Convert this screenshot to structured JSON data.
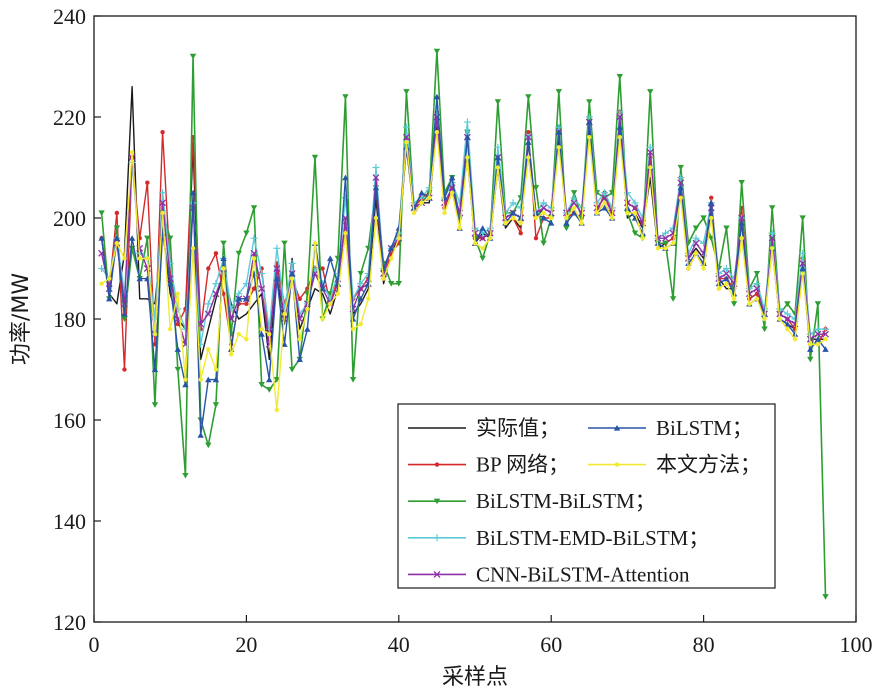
{
  "chart_data": {
    "type": "line",
    "title": "",
    "xlabel": "采样点",
    "ylabel": "功率/MW",
    "xlim": [
      0,
      100
    ],
    "ylim": [
      120,
      240
    ],
    "xticks": [
      0,
      20,
      40,
      60,
      80,
      100
    ],
    "yticks": [
      120,
      140,
      160,
      180,
      200,
      220,
      240
    ],
    "grid": false,
    "legend_position": "bottom-right",
    "x": [
      1,
      2,
      3,
      4,
      5,
      6,
      7,
      8,
      9,
      10,
      11,
      12,
      13,
      14,
      15,
      16,
      17,
      18,
      19,
      20,
      21,
      22,
      23,
      24,
      25,
      26,
      27,
      28,
      29,
      30,
      31,
      32,
      33,
      34,
      35,
      36,
      37,
      38,
      39,
      40,
      41,
      42,
      43,
      44,
      45,
      46,
      47,
      48,
      49,
      50,
      51,
      52,
      53,
      54,
      55,
      56,
      57,
      58,
      59,
      60,
      61,
      62,
      63,
      64,
      65,
      66,
      67,
      68,
      69,
      70,
      71,
      72,
      73,
      74,
      75,
      76,
      77,
      78,
      79,
      80,
      81,
      82,
      83,
      84,
      85,
      86,
      87,
      88,
      89,
      90,
      91,
      92,
      93,
      94,
      95,
      96
    ],
    "series": [
      {
        "name": "实际值；",
        "color": "#1a1a1a",
        "marker": "none",
        "values": [
          196,
          185,
          183,
          193,
          226,
          184,
          184,
          183,
          198,
          185,
          180,
          178,
          214,
          172,
          178,
          184,
          189,
          183,
          180,
          181,
          183,
          185,
          172,
          188,
          179,
          192,
          178,
          182,
          186,
          185,
          181,
          186,
          197,
          181,
          183,
          186,
          204,
          187,
          193,
          196,
          214,
          201,
          203,
          203,
          218,
          202,
          206,
          200,
          212,
          195,
          197,
          196,
          210,
          198,
          200,
          198,
          215,
          200,
          202,
          201,
          216,
          200,
          201,
          200,
          218,
          201,
          203,
          200,
          219,
          200,
          201,
          198,
          208,
          194,
          195,
          196,
          205,
          192,
          194,
          192,
          201,
          188,
          186,
          186,
          200,
          184,
          185,
          180,
          195,
          180,
          179,
          178,
          192,
          176,
          176,
          176
        ]
      },
      {
        "name": "BP 网络；",
        "color": "#d42a2a",
        "marker": "dot",
        "values": [
          196,
          186,
          201,
          170,
          212,
          196,
          207,
          175,
          217,
          190,
          179,
          182,
          216,
          178,
          190,
          193,
          185,
          175,
          183,
          183,
          186,
          190,
          176,
          191,
          183,
          188,
          184,
          186,
          190,
          190,
          183,
          188,
          199,
          184,
          186,
          188,
          206,
          188,
          193,
          195,
          215,
          202,
          204,
          205,
          221,
          202,
          206,
          200,
          217,
          196,
          196,
          197,
          211,
          199,
          200,
          197,
          217,
          196,
          200,
          200,
          218,
          200,
          201,
          200,
          220,
          201,
          205,
          201,
          221,
          203,
          202,
          199,
          212,
          195,
          195,
          196,
          208,
          190,
          193,
          191,
          204,
          188,
          188,
          186,
          202,
          184,
          185,
          181,
          196,
          181,
          180,
          178,
          192,
          175,
          175,
          178
        ]
      },
      {
        "name": "BiLSTM-BiLSTM；",
        "color": "#2e9e32",
        "marker": "tri-down",
        "values": [
          201,
          184,
          198,
          180,
          194,
          188,
          196,
          163,
          201,
          196,
          170,
          149,
          232,
          160,
          155,
          163,
          195,
          177,
          193,
          197,
          202,
          167,
          166,
          168,
          195,
          170,
          172,
          185,
          212,
          180,
          185,
          192,
          224,
          168,
          189,
          194,
          206,
          191,
          187,
          187,
          225,
          202,
          203,
          205,
          233,
          205,
          208,
          200,
          217,
          196,
          192,
          197,
          223,
          201,
          201,
          204,
          224,
          206,
          195,
          200,
          225,
          198,
          205,
          200,
          223,
          205,
          204,
          205,
          228,
          201,
          197,
          196,
          225,
          195,
          195,
          184,
          210,
          195,
          198,
          200,
          196,
          190,
          198,
          183,
          207,
          186,
          189,
          178,
          202,
          181,
          183,
          181,
          200,
          172,
          183,
          125
        ]
      },
      {
        "name": "BiLSTM-EMD-BiLSTM；",
        "color": "#5ccbd8",
        "marker": "plus",
        "values": [
          190,
          188,
          196,
          185,
          211,
          193,
          192,
          180,
          205,
          191,
          182,
          178,
          203,
          175,
          183,
          187,
          192,
          182,
          185,
          187,
          196,
          189,
          178,
          194,
          182,
          191,
          181,
          183,
          190,
          187,
          184,
          189,
          204,
          184,
          187,
          189,
          210,
          190,
          194,
          197,
          218,
          203,
          204,
          206,
          222,
          204,
          207,
          203,
          219,
          198,
          197,
          198,
          214,
          201,
          203,
          202,
          216,
          201,
          203,
          202,
          218,
          201,
          204,
          202,
          220,
          203,
          205,
          202,
          221,
          205,
          203,
          200,
          214,
          196,
          197,
          198,
          208,
          193,
          196,
          195,
          203,
          189,
          190,
          188,
          200,
          186,
          187,
          182,
          197,
          182,
          181,
          180,
          193,
          177,
          178,
          178
        ]
      },
      {
        "name": "CNN-BiLSTM-Attention",
        "color": "#8e30a8",
        "marker": "cross",
        "values": [
          193,
          186,
          195,
          183,
          212,
          194,
          190,
          177,
          203,
          188,
          180,
          175,
          202,
          179,
          181,
          185,
          189,
          180,
          184,
          184,
          193,
          186,
          175,
          190,
          180,
          189,
          180,
          183,
          189,
          186,
          183,
          187,
          200,
          182,
          186,
          187,
          208,
          189,
          194,
          196,
          216,
          202,
          203,
          204,
          220,
          203,
          206,
          201,
          216,
          197,
          196,
          197,
          212,
          200,
          201,
          200,
          216,
          201,
          202,
          201,
          217,
          201,
          203,
          201,
          219,
          202,
          204,
          201,
          220,
          203,
          202,
          199,
          213,
          196,
          196,
          197,
          207,
          192,
          195,
          193,
          202,
          188,
          189,
          187,
          200,
          185,
          186,
          181,
          196,
          181,
          180,
          179,
          191,
          176,
          177,
          177
        ]
      },
      {
        "name": "BiLSTM；",
        "color": "#2854a8",
        "marker": "tri-up",
        "values": [
          196,
          184,
          196,
          181,
          196,
          188,
          188,
          170,
          197,
          187,
          174,
          167,
          205,
          157,
          168,
          168,
          192,
          174,
          184,
          184,
          189,
          177,
          168,
          188,
          175,
          189,
          172,
          178,
          195,
          186,
          192,
          187,
          208,
          180,
          184,
          187,
          206,
          190,
          194,
          198,
          214,
          202,
          205,
          204,
          224,
          204,
          208,
          198,
          216,
          195,
          198,
          196,
          212,
          199,
          201,
          200,
          215,
          201,
          200,
          199,
          217,
          199,
          201,
          199,
          219,
          201,
          202,
          200,
          218,
          202,
          200,
          197,
          210,
          195,
          194,
          195,
          206,
          191,
          193,
          191,
          203,
          187,
          188,
          185,
          199,
          183,
          184,
          181,
          194,
          180,
          179,
          177,
          190,
          174,
          176,
          174
        ]
      },
      {
        "name": "本文方法；",
        "color": "#f2ea30",
        "marker": "dot",
        "values": [
          187,
          188,
          195,
          192,
          213,
          192,
          192,
          177,
          201,
          178,
          185,
          168,
          194,
          168,
          174,
          170,
          190,
          173,
          177,
          176,
          192,
          178,
          177,
          162,
          181,
          188,
          176,
          182,
          195,
          180,
          183,
          185,
          197,
          178,
          179,
          184,
          200,
          188,
          192,
          196,
          215,
          201,
          203,
          204,
          217,
          201,
          205,
          198,
          212,
          195,
          194,
          196,
          210,
          199,
          200,
          199,
          212,
          200,
          201,
          200,
          214,
          200,
          202,
          199,
          216,
          201,
          203,
          200,
          216,
          201,
          201,
          196,
          210,
          194,
          194,
          195,
          204,
          190,
          193,
          190,
          200,
          186,
          187,
          184,
          196,
          183,
          184,
          180,
          194,
          180,
          178,
          176,
          189,
          175,
          175,
          176
        ]
      }
    ],
    "legend": {
      "rows": [
        [
          {
            "series": 0
          },
          {
            "series": 5
          }
        ],
        [
          {
            "series": 1
          },
          {
            "series": 6
          }
        ],
        [
          {
            "series": 2
          }
        ],
        [
          {
            "series": 3
          }
        ],
        [
          {
            "series": 4
          }
        ]
      ]
    }
  }
}
